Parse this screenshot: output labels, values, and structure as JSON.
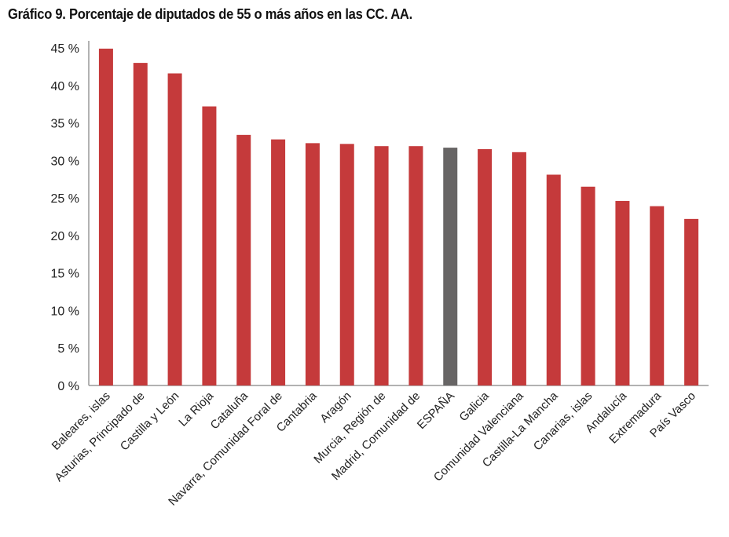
{
  "chart_data": {
    "type": "bar",
    "title": "Gráfico 9. Porcentaje de diputados de 55 o más años en las CC. AA.",
    "xlabel": "",
    "ylabel": "",
    "ylim": [
      0,
      45
    ],
    "yticks": [
      0,
      5,
      10,
      15,
      20,
      25,
      30,
      35,
      40,
      45
    ],
    "ytick_labels": [
      "0 %",
      "5 %",
      "10 %",
      "15 %",
      "20 %",
      "25 %",
      "30 %",
      "35 %",
      "40 %",
      "45 %"
    ],
    "grid": false,
    "categories": [
      "Baleares, islas",
      "Asturias, Principado de",
      "Castilla y León",
      "La Rioja",
      "Cataluña",
      "Navarra, Comunidad Foral de",
      "Cantabria",
      "Aragón",
      "Murcia, Región de",
      "Madrid, Comunidad de",
      "ESPAÑA",
      "Galicia",
      "Comunidad Valenciana",
      "Castilla-La Mancha",
      "Canarias, islas",
      "Andalucía",
      "Extremadura",
      "País Vasco"
    ],
    "values": [
      44.9,
      43.0,
      41.6,
      37.2,
      33.4,
      32.8,
      32.3,
      32.2,
      31.9,
      31.9,
      31.7,
      31.5,
      31.1,
      28.1,
      26.5,
      24.6,
      23.9,
      22.2
    ],
    "colors": {
      "default": "#c53a3b",
      "highlight": "#676565",
      "axis": "#999999"
    },
    "highlight_category": "ESPAÑA"
  }
}
